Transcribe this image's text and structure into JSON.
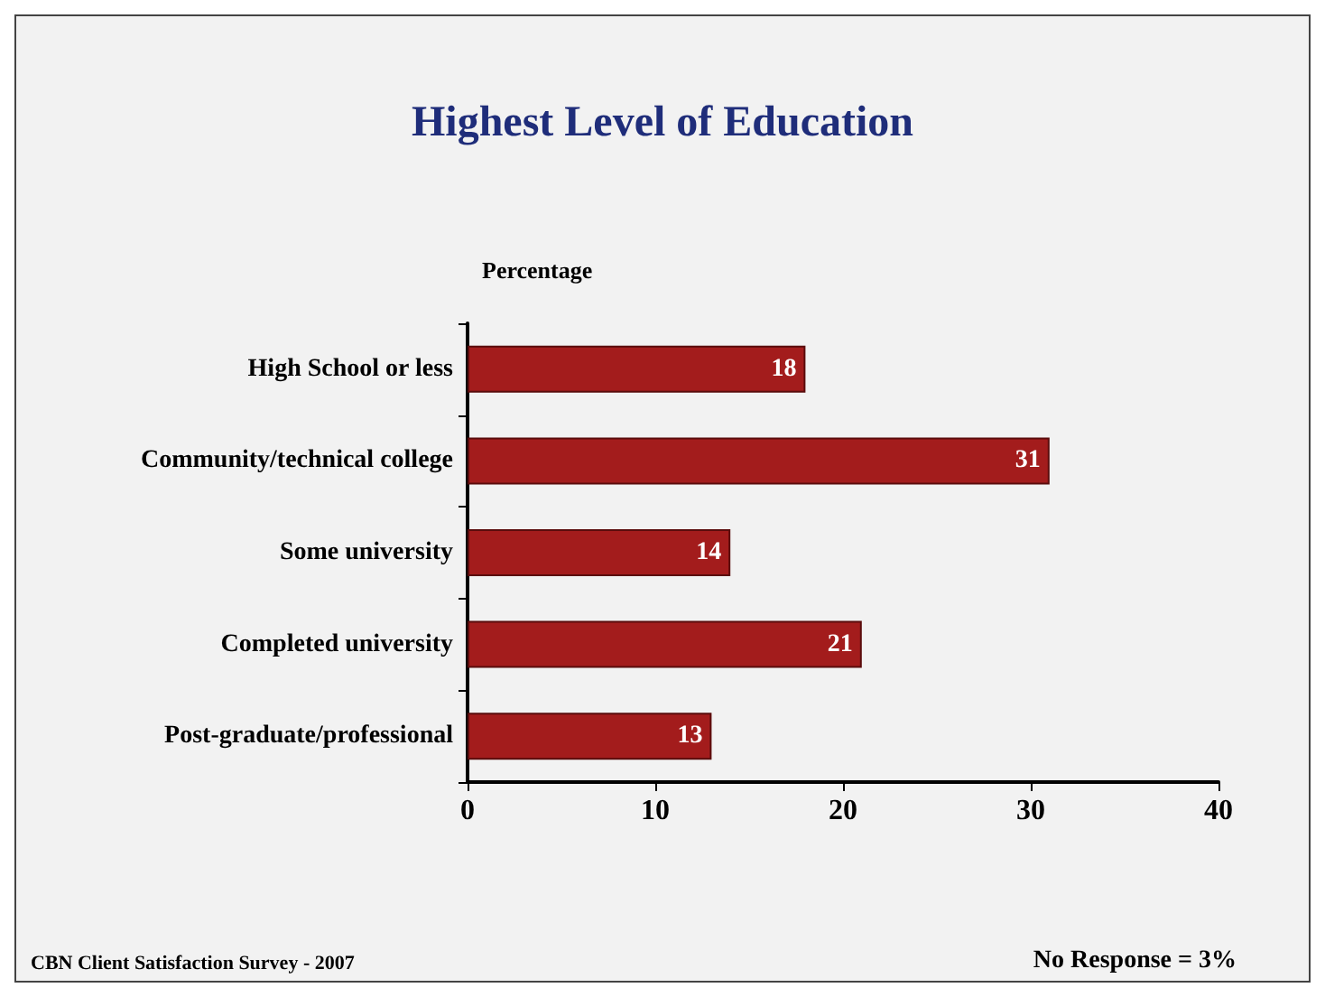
{
  "chart_data": {
    "type": "bar",
    "orientation": "horizontal",
    "title": "Highest Level of Education",
    "xlabel": "Percentage",
    "categories": [
      "High School or less",
      "Community/technical college",
      "Some university",
      "Completed university",
      "Post-graduate/professional"
    ],
    "values": [
      18,
      31,
      14,
      21,
      13
    ],
    "color": "#a31c1c",
    "data_labels": true,
    "xlim": [
      0,
      40
    ],
    "xticks": [
      0,
      10,
      20,
      30,
      40
    ],
    "grid": false,
    "annotations": [
      "CBN Client Satisfaction Survey - 2007",
      "No Response = 3%"
    ]
  }
}
